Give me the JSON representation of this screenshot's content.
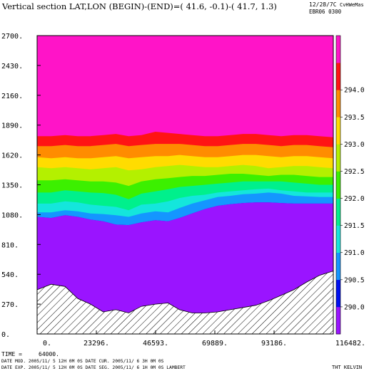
{
  "header": {
    "title": "Vertical section LAT,LON (BEGIN)-(END)=( 41.6, -0.1)-( 41.7,  1.3)",
    "date_code": "12/28/7C",
    "author": "CvHWeMas",
    "run_id": "EBR06 0300"
  },
  "footer": {
    "time_label": "TIME =",
    "time_value": "64000.",
    "line1": "DATE MOD. 2005/11/ 5  12H 0M 0S    DATE CUR. 2005/11/ 6    3H 0M 0S",
    "line2": "DATE EXP. 2005/11/ 5  12H 0M 0S    DATE SEG. 2005/11/ 6    1H 0M 0S    LAMBERT",
    "field": "THT KELVIN"
  },
  "chart_data": {
    "type": "area",
    "title": "Vertical section LAT,LON (BEGIN)-(END)=( 41.6, -0.1)-( 41.7,  1.3)",
    "xlabel": "",
    "ylabel": "",
    "xlim": [
      0,
      116482
    ],
    "ylim": [
      0,
      2700
    ],
    "x_ticks": [
      "0.",
      "23296.",
      "46593.",
      "69889.",
      "93186.",
      "116482."
    ],
    "y_ticks": [
      "0.",
      "270.",
      "540.",
      "810.",
      "1080.",
      "1350.",
      "1620.",
      "1890.",
      "2160.",
      "2430.",
      "2700."
    ],
    "x": [
      0,
      5500,
      11000,
      16000,
      21000,
      26000,
      31000,
      36000,
      41000,
      46500,
      51500,
      56000,
      61000,
      66000,
      71000,
      76000,
      81000,
      86000,
      91000,
      96000,
      101000,
      106000,
      111000,
      116482
    ],
    "terrain": [
      400,
      450,
      430,
      320,
      270,
      200,
      220,
      190,
      250,
      270,
      280,
      220,
      190,
      190,
      200,
      220,
      240,
      260,
      300,
      350,
      400,
      470,
      530,
      570
    ],
    "isentropes": [
      {
        "level": 290.0,
        "height": [
          1060,
          1050,
          1075,
          1060,
          1035,
          1020,
          990,
          985,
          1010,
          1030,
          1020,
          1050,
          1090,
          1130,
          1160,
          1175,
          1185,
          1190,
          1190,
          1185,
          1180,
          1180,
          1180,
          1180
        ]
      },
      {
        "level": 290.5,
        "height": [
          1100,
          1100,
          1120,
          1110,
          1090,
          1085,
          1075,
          1060,
          1090,
          1110,
          1100,
          1140,
          1180,
          1210,
          1240,
          1250,
          1265,
          1270,
          1280,
          1270,
          1250,
          1245,
          1240,
          1240
        ]
      },
      {
        "level": 291.0,
        "height": [
          1180,
          1180,
          1200,
          1190,
          1170,
          1160,
          1150,
          1120,
          1170,
          1180,
          1200,
          1230,
          1250,
          1260,
          1280,
          1290,
          1300,
          1310,
          1315,
          1300,
          1290,
          1280,
          1280,
          1280
        ]
      },
      {
        "level": 291.5,
        "height": [
          1280,
          1280,
          1300,
          1290,
          1280,
          1275,
          1260,
          1220,
          1270,
          1290,
          1310,
          1330,
          1340,
          1350,
          1360,
          1370,
          1380,
          1380,
          1380,
          1380,
          1370,
          1360,
          1350,
          1350
        ]
      },
      {
        "level": 292.0,
        "height": [
          1390,
          1390,
          1400,
          1390,
          1380,
          1380,
          1370,
          1340,
          1380,
          1400,
          1410,
          1420,
          1430,
          1430,
          1440,
          1450,
          1450,
          1440,
          1430,
          1440,
          1440,
          1430,
          1420,
          1420
        ]
      },
      {
        "level": 292.5,
        "height": [
          1510,
          1500,
          1510,
          1500,
          1490,
          1500,
          1510,
          1480,
          1490,
          1510,
          1520,
          1530,
          1520,
          1510,
          1510,
          1520,
          1530,
          1520,
          1500,
          1510,
          1520,
          1520,
          1510,
          1500
        ]
      },
      {
        "level": 293.0,
        "height": [
          1600,
          1590,
          1600,
          1590,
          1590,
          1600,
          1610,
          1590,
          1600,
          1610,
          1610,
          1620,
          1610,
          1600,
          1600,
          1610,
          1620,
          1620,
          1610,
          1600,
          1610,
          1610,
          1600,
          1590
        ]
      },
      {
        "level": 293.5,
        "height": [
          1700,
          1700,
          1710,
          1700,
          1700,
          1710,
          1720,
          1700,
          1710,
          1720,
          1720,
          1720,
          1710,
          1700,
          1700,
          1710,
          1720,
          1720,
          1710,
          1700,
          1710,
          1710,
          1700,
          1690
        ]
      },
      {
        "level": 294.0,
        "height": [
          1790,
          1790,
          1800,
          1790,
          1790,
          1800,
          1810,
          1790,
          1800,
          1830,
          1820,
          1810,
          1800,
          1790,
          1790,
          1800,
          1810,
          1810,
          1800,
          1790,
          1800,
          1800,
          1790,
          1780
        ]
      }
    ],
    "colorbar": {
      "labels": [
        "290.0",
        "290.5",
        "291.0",
        "291.5",
        "292.0",
        "292.5",
        "293.0",
        "293.5",
        "294.0"
      ],
      "colors": [
        "#9a14ff",
        "#0010f0",
        "#1496ff",
        "#14e6dc",
        "#00f08c",
        "#3cf000",
        "#b4f000",
        "#ffdc00",
        "#ff8c00",
        "#ff1414",
        "#ff14c8"
      ]
    }
  }
}
